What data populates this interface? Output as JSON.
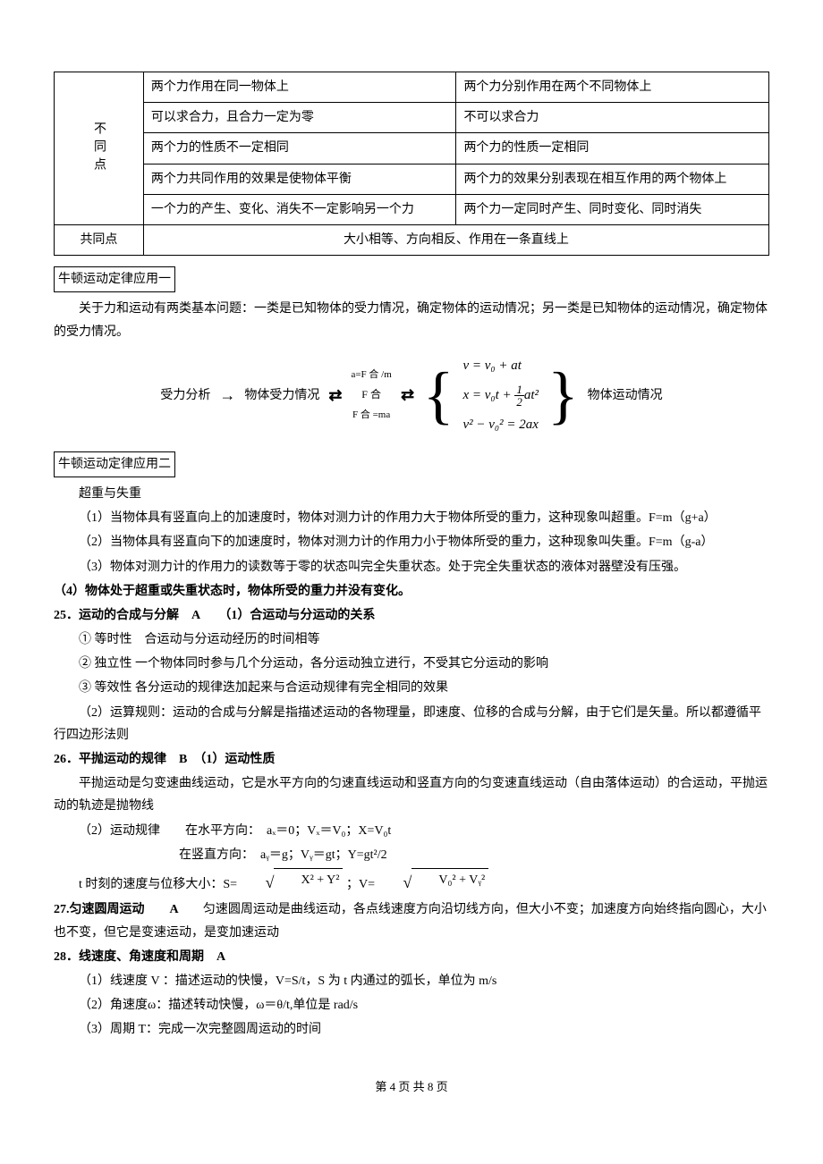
{
  "table": {
    "diff_label": "不同点",
    "common_label": "共同点",
    "rows": [
      {
        "left": "两个力作用在同一物体上",
        "right": "两个力分别作用在两个不同物体上"
      },
      {
        "left": "可以求合力，且合力一定为零",
        "right": "不可以求合力"
      },
      {
        "left": "两个力的性质不一定相同",
        "right": "两个力的性质一定相同"
      },
      {
        "left": "两个力共同作用的效果是使物体平衡",
        "right": "两个力的效果分别表现在相互作用的两个物体上"
      },
      {
        "left": "一个力的产生、变化、消失不一定影响另一个力",
        "right": "两个力一定同时产生、同时变化、同时消失"
      }
    ],
    "common_text": "大小相等、方向相反、作用在一条直线上"
  },
  "app1": {
    "title": "牛顿运动定律应用一",
    "p1": "关于力和运动有两类基本问题：一类是已知物体的受力情况，确定物体的运动情况；另一类是已知物体的运动情况，确定物体的受力情况。",
    "flow": {
      "t1": "受力分析",
      "t2": "物体受力情况",
      "top": "a=F 合 /m",
      "mid": "F 合",
      "bot": "F 合 =ma",
      "eq1": "v = v₀ + at",
      "eq2_a": "x = v₀t + ",
      "eq2_num": "1",
      "eq2_den": "2",
      "eq2_b": "at²",
      "eq3": "v² − v₀² = 2ax",
      "t3": "物体运动情况"
    }
  },
  "app2": {
    "title": "牛顿运动定律应用二",
    "sub": "超重与失重",
    "p1": "（1）当物体具有竖直向上的加速度时，物体对测力计的作用力大于物体所受的重力，这种现象叫超重。F=m（g+a）",
    "p2": "（2）当物体具有竖直向下的加速度时，物体对测力计的作用力小于物体所受的重力，这种现象叫失重。F=m（g-a）",
    "p3": "（3）物体对测力计的作用力的读数等于零的状态叫完全失重状态。处于完全失重状态的液体对器壁没有压强。",
    "p4": "（4）物体处于超重或失重状态时，物体所受的重力并没有变化。"
  },
  "s25": {
    "head": "25．运动的合成与分解　A　　（1）合运动与分运动的关系",
    "l1": "① 等时性　合运动与分运动经历的时间相等",
    "l2": "② 独立性 一个物体同时参与几个分运动，各分运动独立进行，不受其它分运动的影响",
    "l3": "③ 等效性 各分运动的规律迭加起来与合运动规律有完全相同的效果",
    "l4": "（2）运算规则：运动的合成与分解是指描述运动的各物理量，即速度、位移的合成与分解，由于它们是矢量。所以都遵循平行四边形法则"
  },
  "s26": {
    "head": "26．平抛运动的规律　B　（1）运动性质",
    "p1": "平抛运动是匀变速曲线运动，它是水平方向的匀速直线运动和竖直方向的匀变速直线运动（自由落体运动）的合运动，平抛运动的轨迹是抛物线",
    "p2": "（2）运动规律　　在水平方向：　aₓ＝0；Vₓ＝V₀；X=V₀t",
    "p3": "　　　　　　　　在竖直方向：　aᵧ＝g；Vᵧ＝gt；Y=gt²/2",
    "p4a": "t 时刻的速度与位移大小：S= ",
    "p4_s_body": "X² + Y²",
    "p4b": " ；V= ",
    "p4_v_body": "V₀² + Vᵧ²"
  },
  "s27": {
    "head": "27.匀速圆周运动　　A　　",
    "body": "匀速圆周运动是曲线运动，各点线速度方向沿切线方向，但大小不变；加速度方向始终指向圆心，大小也不变，但它是变速运动，是变加速运动"
  },
  "s28": {
    "head": "28．线速度、角速度和周期　A",
    "l1": "（1）线速度 V ：描述运动的快慢，V=S/t，S 为 t 内通过的弧长，单位为 m/s",
    "l2": "（2）角速度ω：描述转动快慢，ω＝θ/t,单位是 rad/s",
    "l3": "（3）周期 T：完成一次完整圆周运动的时间"
  },
  "footer": "第 4 页 共 8 页"
}
